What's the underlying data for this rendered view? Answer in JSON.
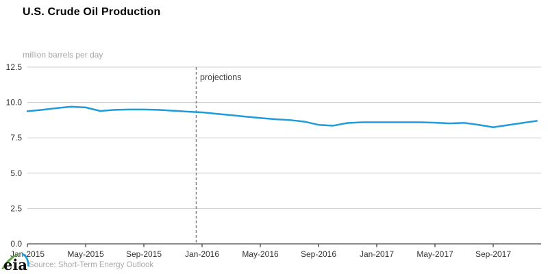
{
  "chart_data": {
    "type": "line",
    "title": "U.S. Crude Oil Production",
    "ylabel": "million barrels per day",
    "xlabel": "",
    "legend_position": "none",
    "grid": true,
    "ylim": [
      0,
      12.5
    ],
    "yticks": [
      "0.0",
      "2.5",
      "5.0",
      "7.5",
      "10.0",
      "12.5"
    ],
    "xticks": [
      "Jan-2015",
      "May-2015",
      "Sep-2015",
      "Jan-2016",
      "May-2016",
      "Sep-2016",
      "Jan-2017",
      "May-2017",
      "Sep-2017"
    ],
    "months": [
      "Jan-2015",
      "Feb-2015",
      "Mar-2015",
      "Apr-2015",
      "May-2015",
      "Jun-2015",
      "Jul-2015",
      "Aug-2015",
      "Sep-2015",
      "Oct-2015",
      "Nov-2015",
      "Dec-2015",
      "Jan-2016",
      "Feb-2016",
      "Mar-2016",
      "Apr-2016",
      "May-2016",
      "Jun-2016",
      "Jul-2016",
      "Aug-2016",
      "Sep-2016",
      "Oct-2016",
      "Nov-2016",
      "Dec-2016",
      "Jan-2017",
      "Feb-2017",
      "Mar-2017",
      "Apr-2017",
      "May-2017",
      "Jun-2017",
      "Jul-2017",
      "Aug-2017",
      "Sep-2017",
      "Oct-2017",
      "Nov-2017",
      "Dec-2017"
    ],
    "values": [
      9.38,
      9.48,
      9.6,
      9.7,
      9.65,
      9.4,
      9.48,
      9.5,
      9.5,
      9.48,
      9.42,
      9.35,
      9.3,
      9.2,
      9.1,
      9.0,
      8.9,
      8.82,
      8.76,
      8.65,
      8.42,
      8.36,
      8.55,
      8.6,
      8.6,
      8.6,
      8.6,
      8.6,
      8.57,
      8.52,
      8.56,
      8.42,
      8.25,
      8.4,
      8.55,
      8.7
    ],
    "projection_label": "projections",
    "divider_month_index": 11.6
  },
  "footer": {
    "source": "Source: Short-Term Energy Outlook",
    "logo_text": "eia"
  },
  "colors": {
    "line": "#1f9bd7",
    "grid": "#cccccc",
    "axis": "#1a1a1a",
    "divider": "#808080",
    "muted_text": "#a6a6a6",
    "tick_text": "#333333",
    "logo_green": "#5fa343",
    "logo_blue": "#1f9bd7",
    "logo_text": "#111111"
  }
}
